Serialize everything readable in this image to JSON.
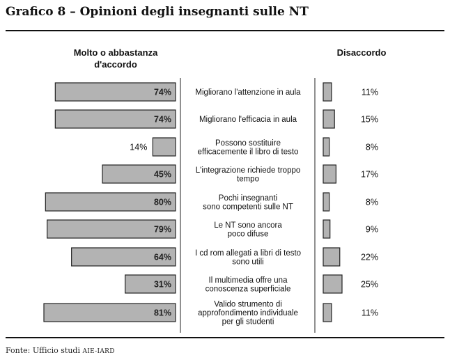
{
  "title": "Grafico 8 – Opinioni degli insegnanti sulle NT",
  "source_prefix": "Fonte: Ufficio studi ",
  "source_org": "AIE-IARD",
  "chart_data": {
    "type": "bar",
    "left_header": [
      "Molto o abbastanza",
      "d'accordo"
    ],
    "right_header": "Disaccordo",
    "rows": [
      {
        "label": [
          "Migliorano l'attenzione in aula"
        ],
        "agree": 74,
        "agree_label": "74%",
        "disagree": 11,
        "disagree_label": "11%"
      },
      {
        "label": [
          "Migliorano l'efficacia in aula"
        ],
        "agree": 74,
        "agree_label": "74%",
        "disagree": 15,
        "disagree_label": "15%"
      },
      {
        "label": [
          "Possono sostituire",
          "efficacemente il libro di testo"
        ],
        "agree": 14,
        "agree_label": "14%",
        "disagree": 8,
        "disagree_label": "8%"
      },
      {
        "label": [
          "L'integrazione richiede troppo",
          "tempo"
        ],
        "agree": 45,
        "agree_label": "45%",
        "disagree": 17,
        "disagree_label": "17%"
      },
      {
        "label": [
          "Pochi insegnanti",
          "sono competenti sulle NT"
        ],
        "agree": 80,
        "agree_label": "80%",
        "disagree": 8,
        "disagree_label": "8%"
      },
      {
        "label": [
          "Le NT sono ancora",
          "poco difuse"
        ],
        "agree": 79,
        "agree_label": "79%",
        "disagree": 9,
        "disagree_label": "9%"
      },
      {
        "label": [
          "I cd rom allegati a libri di testo",
          "sono utili"
        ],
        "agree": 64,
        "agree_label": "64%",
        "disagree": 22,
        "disagree_label": "22%"
      },
      {
        "label": [
          "Il multimedia offre una",
          "conoscenza superficiale"
        ],
        "agree": 31,
        "agree_label": "31%",
        "disagree": 25,
        "disagree_label": "25%"
      },
      {
        "label": [
          "Valido strumento di",
          "approfondimento individuale",
          "per gli studenti"
        ],
        "agree": 81,
        "agree_label": "81%",
        "disagree": 11,
        "disagree_label": "11%"
      }
    ],
    "colors": {
      "bar_fill": "#b3b3b3",
      "bar_stroke": "#222222"
    }
  }
}
